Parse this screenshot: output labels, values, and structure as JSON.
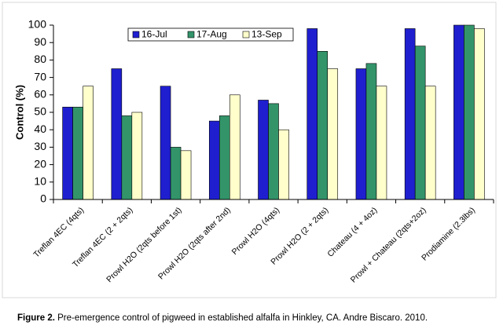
{
  "chart_data": {
    "type": "bar",
    "y_label": "Control (%)",
    "categories": [
      "Treflan 4EC (4qts)",
      "Treflan 4EC (2 + 2qts)",
      "Prowl H2O (2qts before 1st)",
      "Prowl H2O (2qts after 2nd)",
      "Prowl H2O (4qts)",
      "Prowl H2O (2 + 2qts)",
      "Chateau (4 + 4oz)",
      "Prowl + Chateau (2qts+2oz)",
      "Prodiamine (2.3lbs)"
    ],
    "series": [
      {
        "name": "16-Jul",
        "color": "#1f1fd0",
        "values": [
          53,
          75,
          65,
          45,
          57,
          98,
          75,
          98,
          100
        ]
      },
      {
        "name": "17-Aug",
        "color": "#33946a",
        "values": [
          53,
          48,
          30,
          48,
          55,
          85,
          78,
          88,
          100
        ]
      },
      {
        "name": "13-Sep",
        "color": "#ffffcc",
        "values": [
          65,
          50,
          28,
          60,
          40,
          75,
          65,
          65,
          98
        ]
      }
    ],
    "ylim": [
      0,
      100
    ],
    "yticks": [
      0,
      10,
      20,
      30,
      40,
      50,
      60,
      70,
      80,
      90,
      100
    ],
    "grid": false,
    "legend": "top"
  },
  "caption": {
    "label": "Figure 2.",
    "text": "Pre-emergence control of pigweed in established alfalfa in Hinkley, CA. Andre Biscaro. 2010."
  }
}
